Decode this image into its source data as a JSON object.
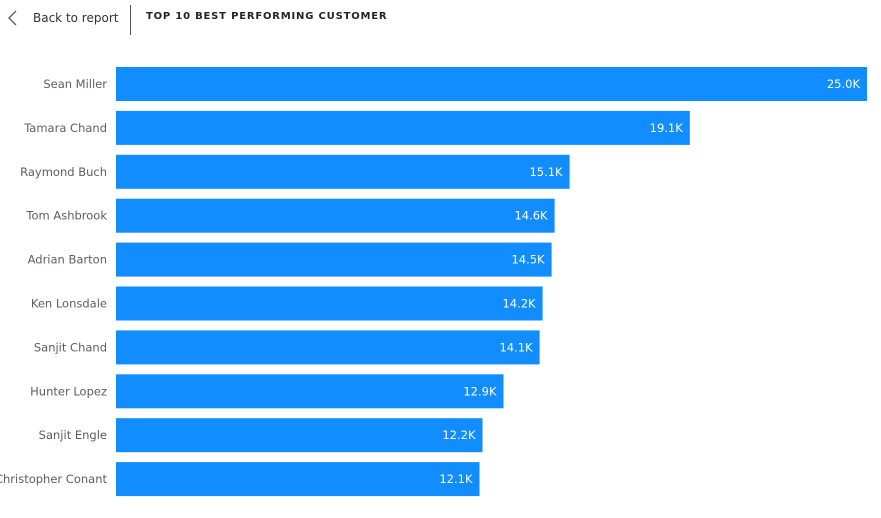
{
  "header": {
    "back_label": "Back to report",
    "back_icon": "chevron-left-icon",
    "title": "TOP 10 BEST PERFORMING CUSTOMER"
  },
  "colors": {
    "bar": "#118DFF",
    "category_label": "#605E5C",
    "data_label": "#FFFFFF"
  },
  "chart_data": {
    "type": "bar",
    "orientation": "horizontal",
    "title": "TOP 10 BEST PERFORMING CUSTOMER",
    "categories": [
      "Sean Miller",
      "Tamara Chand",
      "Raymond Buch",
      "Tom Ashbrook",
      "Adrian Barton",
      "Ken Lonsdale",
      "Sanjit Chand",
      "Hunter Lopez",
      "Sanjit Engle",
      "Christopher Conant"
    ],
    "values": [
      25000,
      19100,
      15100,
      14600,
      14500,
      14200,
      14100,
      12900,
      12200,
      12100
    ],
    "data_labels": [
      "25.0K",
      "19.1K",
      "15.1K",
      "14.6K",
      "14.5K",
      "14.2K",
      "14.1K",
      "12.9K",
      "12.2K",
      "12.1K"
    ],
    "xlim": [
      0,
      25000
    ],
    "grid": false,
    "legend": "none"
  }
}
